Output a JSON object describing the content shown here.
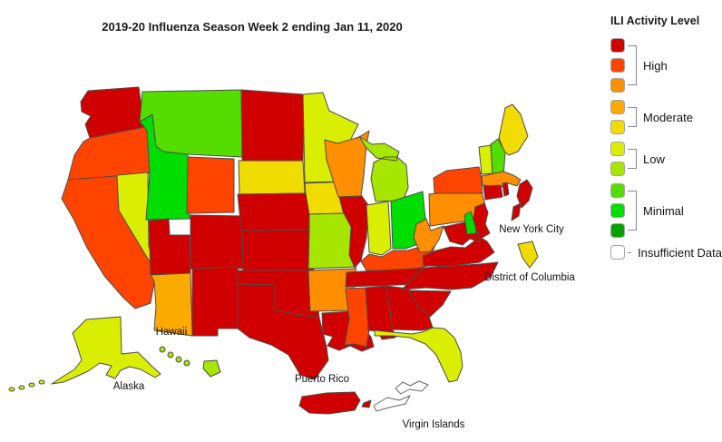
{
  "title": "2019-20 Influenza Season Week 2 ending Jan 11, 2020",
  "legend": {
    "title": "ILI Activity Level",
    "groups": [
      {
        "label": "High",
        "levels": [
          10,
          9,
          8
        ]
      },
      {
        "label": "Moderate",
        "levels": [
          7,
          6
        ]
      },
      {
        "label": "Low",
        "levels": [
          5,
          4
        ]
      },
      {
        "label": "Minimal",
        "levels": [
          3,
          2,
          1
        ]
      },
      {
        "label": "Insufficient Data",
        "levels": [
          0
        ]
      }
    ]
  },
  "level_colors": {
    "10": "#D10000",
    "9": "#FF4400",
    "8": "#FF8E00",
    "7": "#FBAB00",
    "6": "#F0DC00",
    "5": "#D9EE00",
    "4": "#A6E600",
    "3": "#55DD00",
    "2": "#00DD00",
    "1": "#00A300",
    "0": "#FFFFFF"
  },
  "map_labels": [
    {
      "id": "new-york-city",
      "text": "New York City"
    },
    {
      "id": "district-of-columbia",
      "text": "District of Columbia"
    },
    {
      "id": "hawaii",
      "text": "Hawaii"
    },
    {
      "id": "alaska",
      "text": "Alaska"
    },
    {
      "id": "puerto-rico",
      "text": "Puerto Rico"
    },
    {
      "id": "virgin-islands",
      "text": "Virgin Islands"
    }
  ],
  "map": {
    "states": [
      {
        "abbr": "WA",
        "name": "Washington",
        "level": 10,
        "category": "High"
      },
      {
        "abbr": "OR",
        "name": "Oregon",
        "level": 9,
        "category": "High"
      },
      {
        "abbr": "CA",
        "name": "California",
        "level": 9,
        "category": "High"
      },
      {
        "abbr": "NV",
        "name": "Nevada",
        "level": 5,
        "category": "Low"
      },
      {
        "abbr": "ID",
        "name": "Idaho",
        "level": 2,
        "category": "Minimal"
      },
      {
        "abbr": "MT",
        "name": "Montana",
        "level": 3,
        "category": "Minimal"
      },
      {
        "abbr": "WY",
        "name": "Wyoming",
        "level": 9,
        "category": "High"
      },
      {
        "abbr": "UT",
        "name": "Utah",
        "level": 10,
        "category": "High"
      },
      {
        "abbr": "CO",
        "name": "Colorado",
        "level": 10,
        "category": "High"
      },
      {
        "abbr": "AZ",
        "name": "Arizona",
        "level": 7,
        "category": "Moderate"
      },
      {
        "abbr": "NM",
        "name": "New Mexico",
        "level": 10,
        "category": "High"
      },
      {
        "abbr": "ND",
        "name": "North Dakota",
        "level": 10,
        "category": "High"
      },
      {
        "abbr": "SD",
        "name": "South Dakota",
        "level": 6,
        "category": "Moderate"
      },
      {
        "abbr": "NE",
        "name": "Nebraska",
        "level": 10,
        "category": "High"
      },
      {
        "abbr": "KS",
        "name": "Kansas",
        "level": 10,
        "category": "High"
      },
      {
        "abbr": "OK",
        "name": "Oklahoma",
        "level": 10,
        "category": "High"
      },
      {
        "abbr": "TX",
        "name": "Texas",
        "level": 10,
        "category": "High"
      },
      {
        "abbr": "MN",
        "name": "Minnesota",
        "level": 5,
        "category": "Low"
      },
      {
        "abbr": "IA",
        "name": "Iowa",
        "level": 6,
        "category": "Moderate"
      },
      {
        "abbr": "MO",
        "name": "Missouri",
        "level": 4,
        "category": "Low"
      },
      {
        "abbr": "AR",
        "name": "Arkansas",
        "level": 8,
        "category": "High"
      },
      {
        "abbr": "LA",
        "name": "Louisiana",
        "level": 10,
        "category": "High"
      },
      {
        "abbr": "WI",
        "name": "Wisconsin",
        "level": 8,
        "category": "High"
      },
      {
        "abbr": "IL",
        "name": "Illinois",
        "level": 10,
        "category": "High"
      },
      {
        "abbr": "MI",
        "name": "Michigan",
        "level": 4,
        "category": "Low"
      },
      {
        "abbr": "IN",
        "name": "Indiana",
        "level": 5,
        "category": "Low"
      },
      {
        "abbr": "OH",
        "name": "Ohio",
        "level": 2,
        "category": "Minimal"
      },
      {
        "abbr": "KY",
        "name": "Kentucky",
        "level": 9,
        "category": "High"
      },
      {
        "abbr": "TN",
        "name": "Tennessee",
        "level": 10,
        "category": "High"
      },
      {
        "abbr": "MS",
        "name": "Mississippi",
        "level": 9,
        "category": "High"
      },
      {
        "abbr": "AL",
        "name": "Alabama",
        "level": 10,
        "category": "High"
      },
      {
        "abbr": "GA",
        "name": "Georgia",
        "level": 10,
        "category": "High"
      },
      {
        "abbr": "FL",
        "name": "Florida",
        "level": 5,
        "category": "Low"
      },
      {
        "abbr": "SC",
        "name": "South Carolina",
        "level": 10,
        "category": "High"
      },
      {
        "abbr": "NC",
        "name": "North Carolina",
        "level": 10,
        "category": "High"
      },
      {
        "abbr": "VA",
        "name": "Virginia",
        "level": 10,
        "category": "High"
      },
      {
        "abbr": "WV",
        "name": "West Virginia",
        "level": 8,
        "category": "High"
      },
      {
        "abbr": "PA",
        "name": "Pennsylvania",
        "level": 8,
        "category": "High"
      },
      {
        "abbr": "NY",
        "name": "New York",
        "level": 9,
        "category": "High"
      },
      {
        "abbr": "ME",
        "name": "Maine",
        "level": 6,
        "category": "Moderate"
      },
      {
        "abbr": "VT",
        "name": "Vermont",
        "level": 5,
        "category": "Low"
      },
      {
        "abbr": "NH",
        "name": "New Hampshire",
        "level": 3,
        "category": "Minimal"
      },
      {
        "abbr": "MA",
        "name": "Massachusetts",
        "level": 8,
        "category": "High"
      },
      {
        "abbr": "CT",
        "name": "Connecticut",
        "level": 10,
        "category": "High"
      },
      {
        "abbr": "RI",
        "name": "Rhode Island",
        "level": 10,
        "category": "High"
      },
      {
        "abbr": "NJ",
        "name": "New Jersey",
        "level": 10,
        "category": "High"
      },
      {
        "abbr": "MD",
        "name": "Maryland",
        "level": 10,
        "category": "High"
      },
      {
        "abbr": "DE",
        "name": "Delaware",
        "level": 2,
        "category": "Minimal"
      },
      {
        "abbr": "DC",
        "name": "District of Columbia",
        "level": 6,
        "category": "Moderate"
      },
      {
        "abbr": "NYC",
        "name": "New York City",
        "level": 10,
        "category": "High"
      },
      {
        "abbr": "AK",
        "name": "Alaska",
        "level": 5,
        "category": "Low"
      },
      {
        "abbr": "HI",
        "name": "Hawaii",
        "level": 4,
        "category": "Low"
      },
      {
        "abbr": "PR",
        "name": "Puerto Rico",
        "level": 10,
        "category": "High"
      },
      {
        "abbr": "VI",
        "name": "Virgin Islands",
        "level": 0,
        "category": "Insufficient Data"
      }
    ]
  }
}
